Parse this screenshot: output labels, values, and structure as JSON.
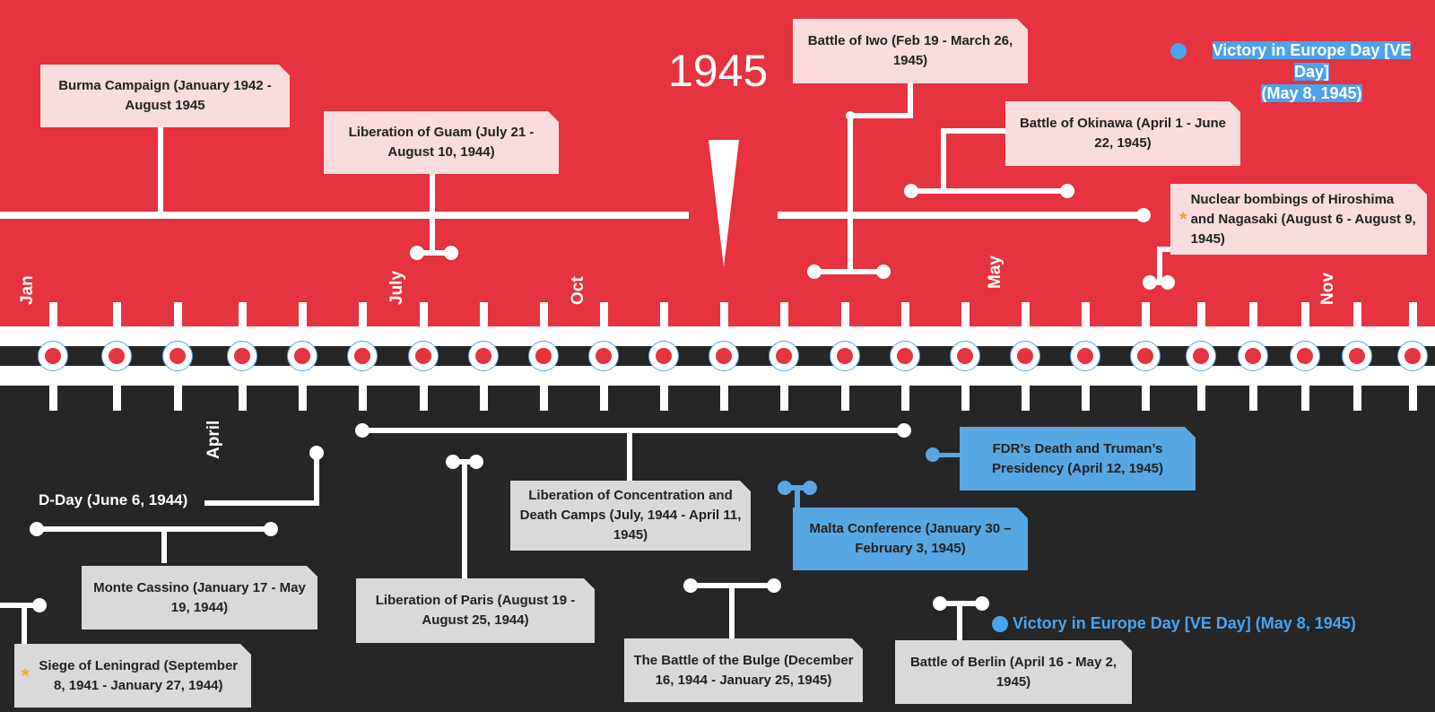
{
  "title": "1945",
  "months": [
    {
      "label": "Jan",
      "pos": "top"
    },
    {
      "label": "July",
      "pos": "top"
    },
    {
      "label": "Oct",
      "pos": "top"
    },
    {
      "label": "May",
      "pos": "top"
    },
    {
      "label": "Nov",
      "pos": "top"
    },
    {
      "label": "April",
      "pos": "bottom"
    }
  ],
  "node_count": 24,
  "events_top": [
    {
      "id": "burma",
      "text": "Burma Campaign (January 1942 - August 1945"
    },
    {
      "id": "guam",
      "text": "Liberation of Guam (July 21 - August 10, 1944)"
    },
    {
      "id": "iwo",
      "text": "Battle of Iwo (Feb 19 - March 26, 1945)"
    },
    {
      "id": "okinawa",
      "text": "Battle of Okinawa (April 1 - June 22, 1945)"
    },
    {
      "id": "nuclear",
      "text": "Nuclear bombings of Hiroshima and Nagasaki (August 6 - August 9, 1945)"
    }
  ],
  "ve_top": {
    "line1": "Victory in Europe Day [VE Day]",
    "line2": "(May 8, 1945)"
  },
  "events_bottom": [
    {
      "id": "dday",
      "text": "D-Day (June 6, 1944)"
    },
    {
      "id": "cassino",
      "text": "Monte Cassino (January 17 - May 19, 1944)"
    },
    {
      "id": "leningrad",
      "text": "Siege of Leningrad (September 8, 1941 - January 27, 1944)"
    },
    {
      "id": "paris",
      "text": "Liberation of Paris (August 19 - August 25, 1944)"
    },
    {
      "id": "camps",
      "text": "Liberation of Concentration and Death Camps (July, 1944 - April 11, 1945)"
    },
    {
      "id": "bulge",
      "text": "The Battle of the Bulge (December 16, 1944 - January 25, 1945)"
    },
    {
      "id": "fdr",
      "text": "FDR’s Death and Truman’s Presidency  (April 12, 1945)"
    },
    {
      "id": "malta",
      "text": "Malta Conference (January 30 – February 3, 1945)"
    },
    {
      "id": "berlin",
      "text": "Battle of Berlin (April 16 - May 2, 1945)"
    }
  ],
  "ve_bottom": {
    "text": "Victory in Europe Day [VE Day] (May 8, 1945)"
  },
  "colors": {
    "red": "#e5333f",
    "dark": "#262626",
    "pink": "#fadcdd",
    "grey": "#d9d9d9",
    "blue": "#57a7e2",
    "star": "#f2a33a"
  }
}
